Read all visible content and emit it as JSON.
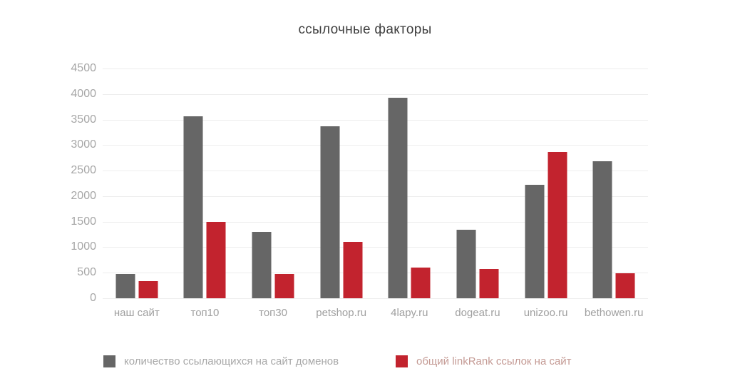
{
  "page": {
    "background": "#ffffff"
  },
  "chart_data": {
    "type": "bar",
    "title": "ссылочные факторы",
    "categories": [
      "наш сайт",
      "топ10",
      "топ30",
      "petshop.ru",
      "4lapy.ru",
      "dogeat.ru",
      "unizoo.ru",
      "bethowen.ru"
    ],
    "series": [
      {
        "name": "количество ссылающихся на сайт доменов",
        "color": "#666666",
        "values": [
          470,
          3570,
          1300,
          3370,
          3930,
          1340,
          2220,
          2690
        ]
      },
      {
        "name": "общий linkRank ссылок на сайт",
        "color": "#c2232e",
        "values": [
          330,
          1490,
          470,
          1110,
          600,
          570,
          2870,
          490
        ]
      }
    ],
    "xlabel": "",
    "ylabel": "",
    "ylim": [
      0,
      4500
    ],
    "yticks": [
      0,
      500,
      1000,
      1500,
      2000,
      2500,
      3000,
      3500,
      4000,
      4500
    ],
    "grid": true,
    "legend_position": "bottom"
  },
  "legend": {
    "items": [
      {
        "swatch_color": "#666666",
        "text_color": "#a8a8a8"
      },
      {
        "swatch_color": "#c2232e",
        "text_color": "#c49a94"
      }
    ]
  },
  "colors": {
    "title_text": "#3f3f3f",
    "axis_text": "#a6a6a6",
    "gridline": "#ededed"
  }
}
